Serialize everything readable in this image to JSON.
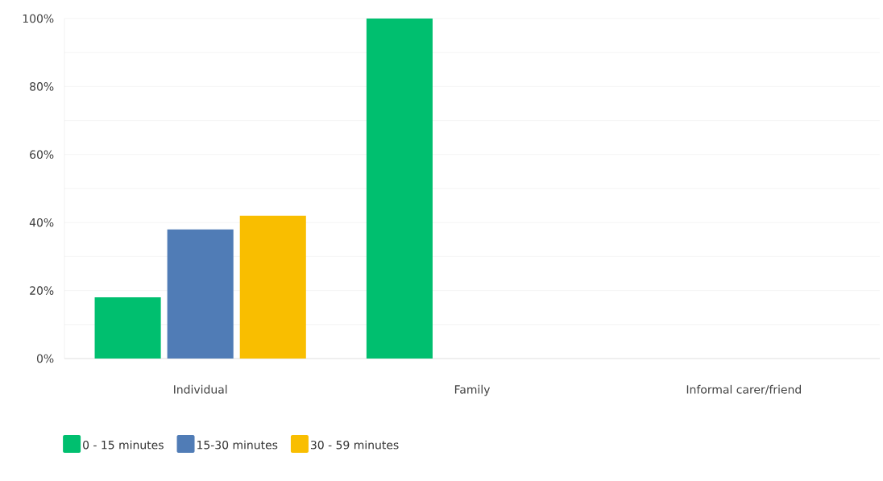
{
  "chart_data": {
    "type": "bar",
    "categories": [
      "Individual",
      "Family",
      "Informal carer/friend"
    ],
    "series": [
      {
        "name": "0 - 15 minutes",
        "color": "#00bf6f",
        "values": [
          18,
          100,
          0
        ]
      },
      {
        "name": "15-30 minutes",
        "color": "#507cb6",
        "values": [
          38,
          0,
          0
        ]
      },
      {
        "name": "30 - 59 minutes",
        "color": "#f9be00",
        "values": [
          42,
          0,
          0
        ]
      }
    ],
    "ylim": [
      0,
      100
    ],
    "yticks": [
      {
        "value": 0,
        "label": "0%"
      },
      {
        "value": 10,
        "label": null
      },
      {
        "value": 20,
        "label": "20%"
      },
      {
        "value": 30,
        "label": null
      },
      {
        "value": 40,
        "label": "40%"
      },
      {
        "value": 50,
        "label": null
      },
      {
        "value": 60,
        "label": "60%"
      },
      {
        "value": 70,
        "label": null
      },
      {
        "value": 80,
        "label": "80%"
      },
      {
        "value": 90,
        "label": null
      },
      {
        "value": 100,
        "label": "100%"
      }
    ],
    "grid": "y",
    "legend": "bottom"
  }
}
